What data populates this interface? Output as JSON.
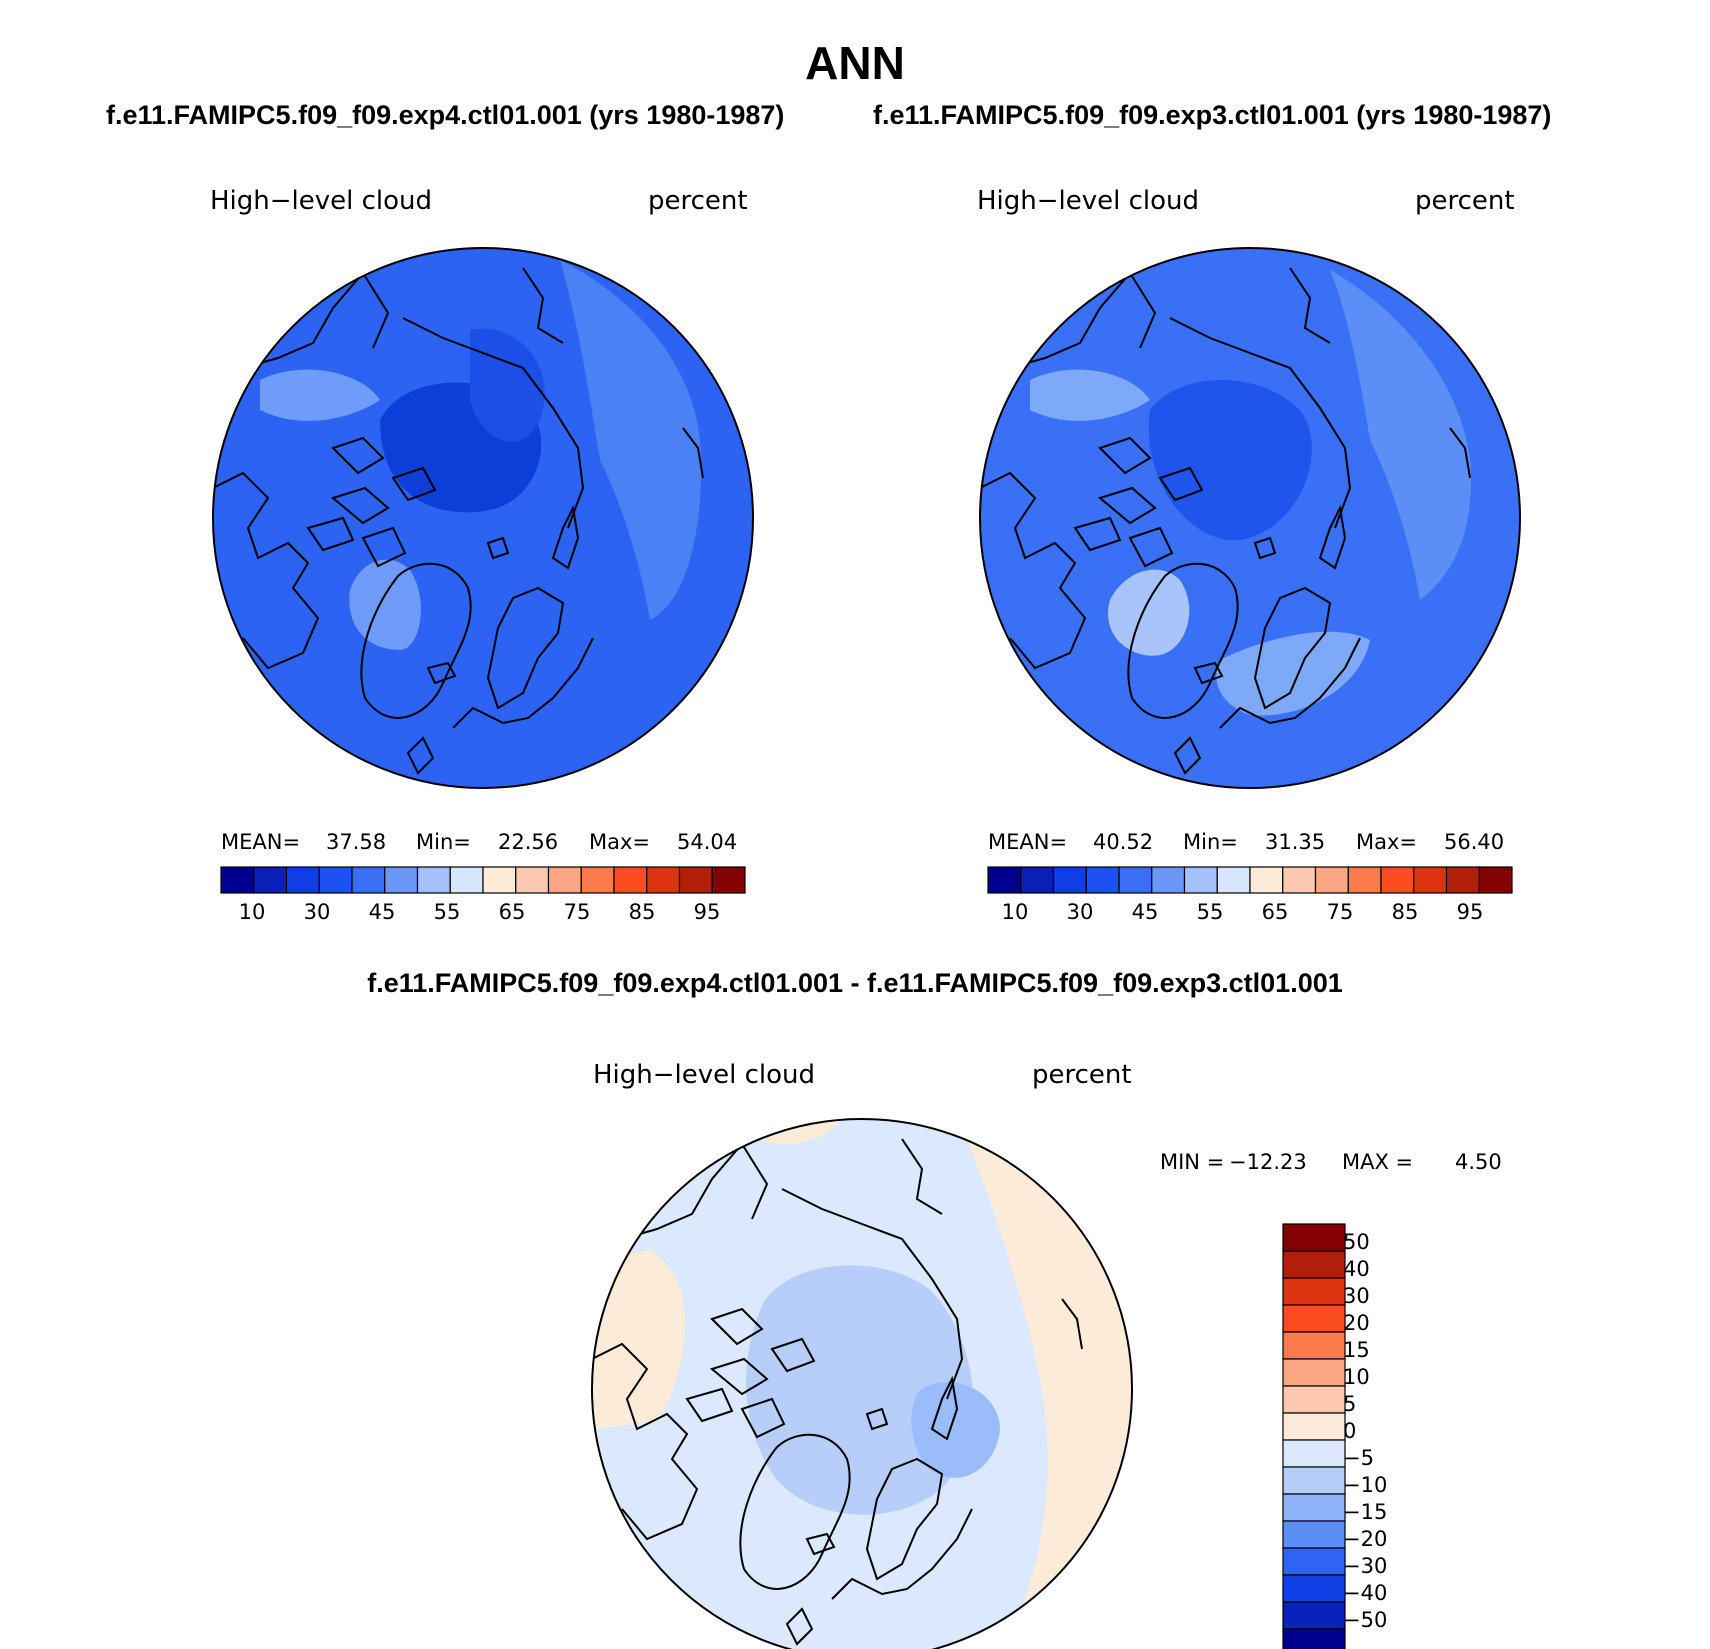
{
  "page_title": "ANN",
  "panels": [
    {
      "id": "top-left",
      "subtitle": "f.e11.FAMIPC5.f09_f09.exp4.ctl01.001 (yrs 1980-1987)",
      "variable": "High−level cloud",
      "units": "percent",
      "stats": {
        "mean_label": "MEAN=",
        "mean": "37.58",
        "min_label": "Min=",
        "min": "22.56",
        "max_label": "Max=",
        "max": "54.04"
      },
      "field": {
        "base_color": "#2c63f2",
        "regions": [
          {
            "name": "north-pole-low-cloud",
            "color": "#0d3fd8"
          },
          {
            "name": "siberia-low-cloud",
            "color": "#1b4fe8"
          },
          {
            "name": "pacific-band",
            "color": "#4a82f6"
          },
          {
            "name": "greenland-high-cloud",
            "color": "#6f9cf8"
          },
          {
            "name": "alaska-band",
            "color": "#6f9cf8"
          }
        ]
      }
    },
    {
      "id": "top-right",
      "subtitle": "f.e11.FAMIPC5.f09_f09.exp3.ctl01.001 (yrs 1980-1987)",
      "variable": "High−level cloud",
      "units": "percent",
      "stats": {
        "mean_label": "MEAN=",
        "mean": "40.52",
        "min_label": "Min=",
        "min": "31.35",
        "max_label": "Max=",
        "max": "56.40"
      },
      "field": {
        "base_color": "#3a70f5",
        "regions": [
          {
            "name": "north-pole-low-cloud",
            "color": "#1f55ec"
          },
          {
            "name": "pacific-band",
            "color": "#5b8ff7"
          },
          {
            "name": "greenland-high-cloud",
            "color": "#a8c4fb"
          },
          {
            "name": "scandinavia-band",
            "color": "#7ea8f8"
          },
          {
            "name": "alaska-band",
            "color": "#7ea8f8"
          }
        ]
      }
    },
    {
      "id": "bottom",
      "subtitle": "f.e11.FAMIPC5.f09_f09.exp4.ctl01.001 - f.e11.FAMIPC5.f09_f09.exp3.ctl01.001",
      "variable": "High−level cloud",
      "units": "percent",
      "stats": {
        "min_label": "MIN =",
        "min": "−12.23",
        "max_label": "MAX =",
        "max": "4.50"
      },
      "field": {
        "base_color": "#dbe8fd",
        "regions": [
          {
            "name": "positive-rim",
            "color": "#fdebd9"
          },
          {
            "name": "arctic-negative",
            "color": "#b7cefb"
          },
          {
            "name": "siberia-negative",
            "color": "#9bbcfa"
          }
        ]
      }
    }
  ],
  "colorbar_main": {
    "colors": [
      "#00008f",
      "#0a1fb8",
      "#0f3ee6",
      "#1c52f4",
      "#3a6ff5",
      "#6a97f7",
      "#a3c0fb",
      "#d8e7fd",
      "#fdebd9",
      "#fdc9b0",
      "#fda684",
      "#fd7a4a",
      "#fb4d1f",
      "#dd3410",
      "#b11f08",
      "#850002"
    ],
    "ticks": [
      "10",
      "30",
      "45",
      "55",
      "65",
      "75",
      "85",
      "95"
    ]
  },
  "colorbar_diff": {
    "colors": [
      "#850002",
      "#b11f08",
      "#dd3410",
      "#fb4d1f",
      "#fd7a4a",
      "#fda684",
      "#fdc9b0",
      "#fdebd9",
      "#dbe8fd",
      "#b7cefb",
      "#8eb2f9",
      "#5b8ff7",
      "#2f63f3",
      "#1140e6",
      "#0a22bc",
      "#00008f"
    ],
    "ticks": [
      "50",
      "40",
      "30",
      "20",
      "15",
      "10",
      "5",
      "0",
      "−5",
      "−10",
      "−15",
      "−20",
      "−30",
      "−40",
      "−50"
    ]
  }
}
